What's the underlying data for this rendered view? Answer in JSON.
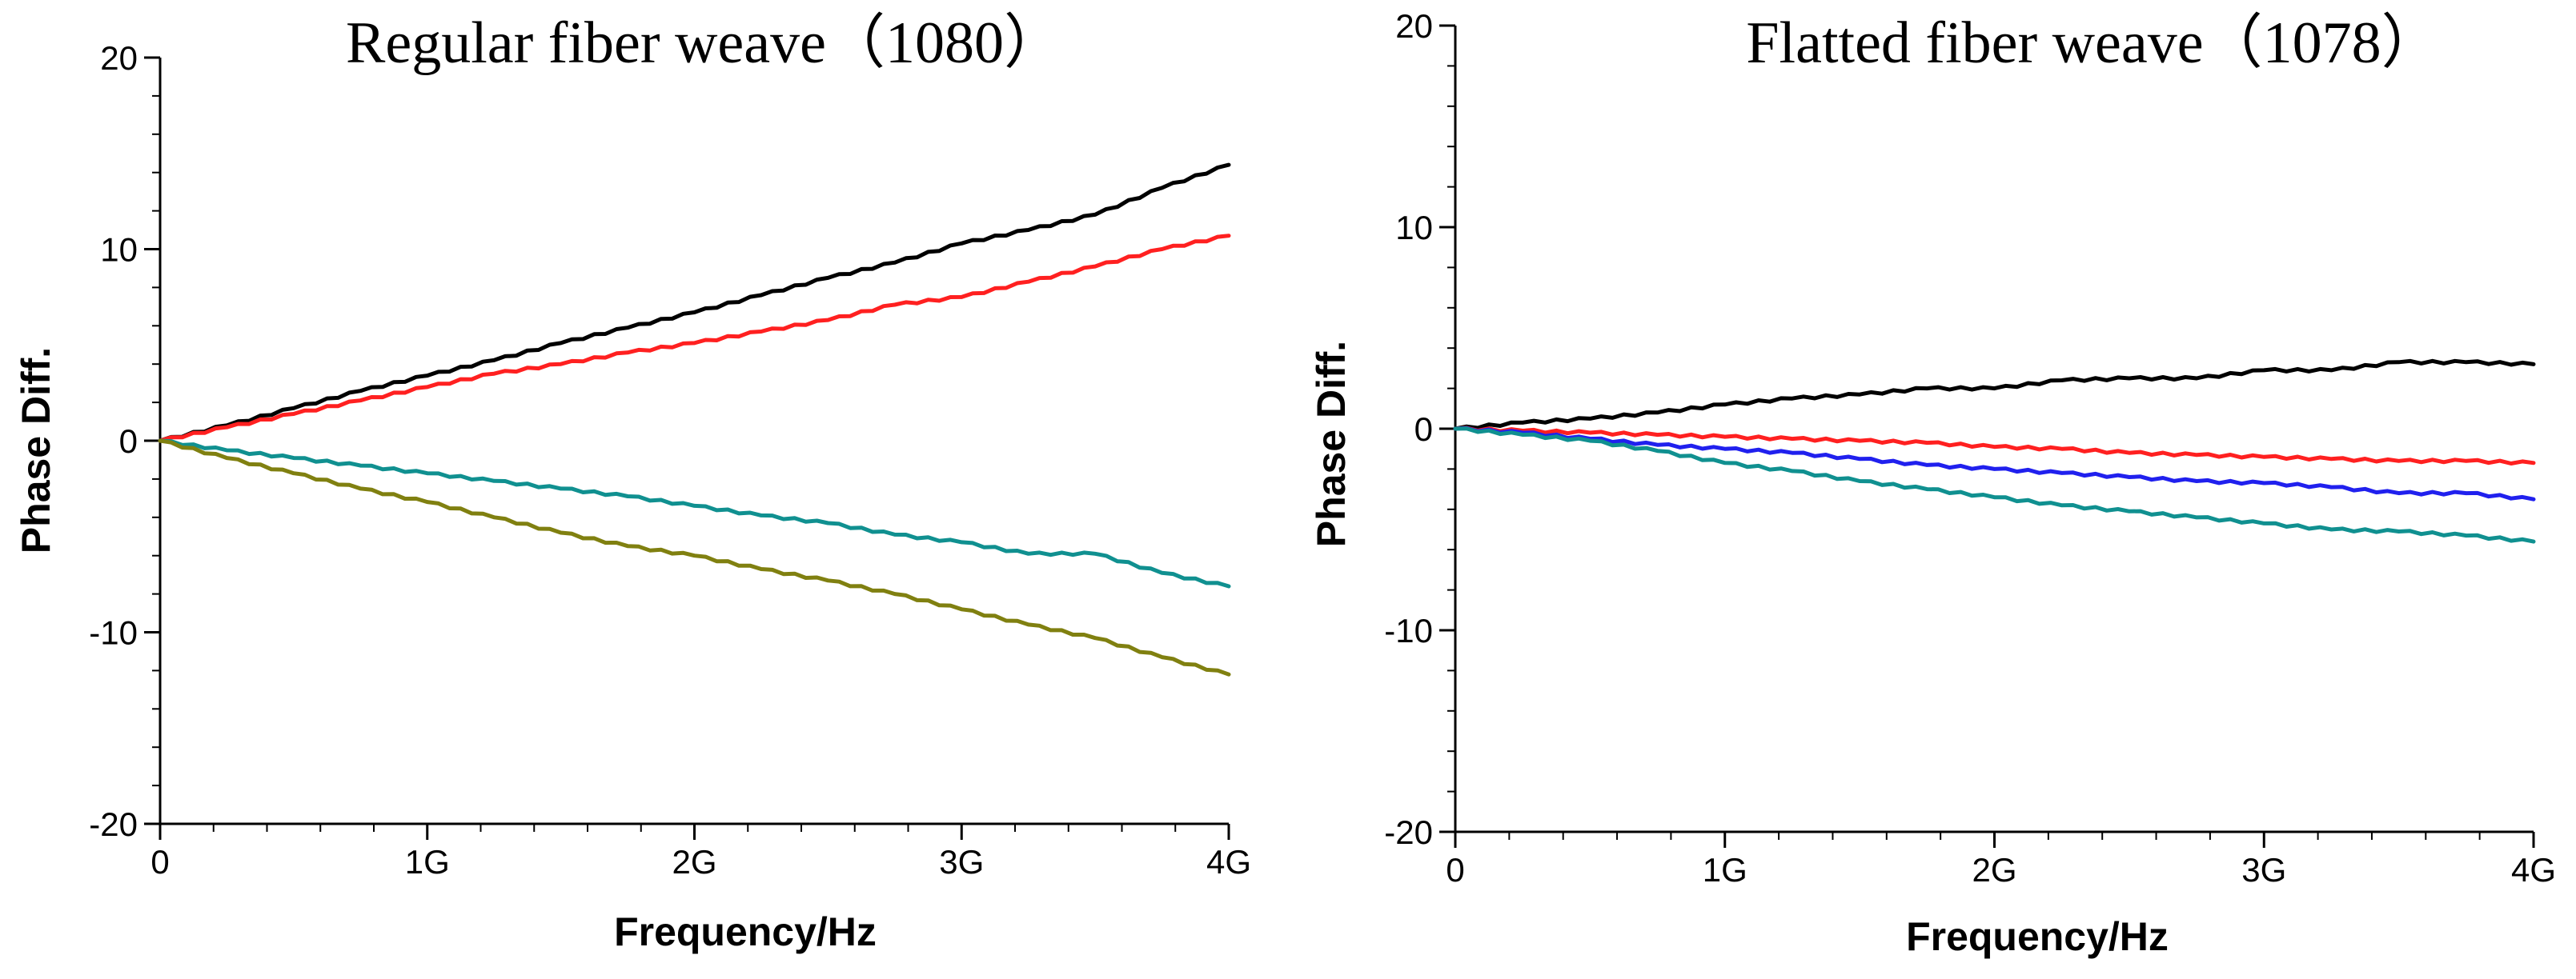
{
  "chart_data": [
    {
      "type": "line",
      "title": "Regular fiber weave（1080）",
      "xlabel": "Frequency/Hz",
      "ylabel": "Phase Diff.",
      "xlim": [
        0,
        4
      ],
      "ylim": [
        -20,
        20
      ],
      "x_ticks": [
        0,
        1,
        2,
        3,
        4
      ],
      "x_tick_labels": [
        "0",
        "1G",
        "2G",
        "3G",
        "4G"
      ],
      "y_ticks": [
        -20,
        -10,
        0,
        10,
        20
      ],
      "y_tick_labels": [
        "-20",
        "-10",
        "0",
        "10",
        "20"
      ],
      "grid": false,
      "x": [
        0,
        0.25,
        0.5,
        0.75,
        1.0,
        1.25,
        1.5,
        1.75,
        2.0,
        2.25,
        2.5,
        2.75,
        3.0,
        3.25,
        3.5,
        3.75,
        4.0
      ],
      "series": [
        {
          "name": "black",
          "color": "#000000",
          "values": [
            0,
            0.8,
            1.7,
            2.6,
            3.4,
            4.2,
            5.1,
            5.9,
            6.7,
            7.6,
            8.5,
            9.3,
            10.3,
            11.0,
            11.8,
            13.2,
            14.4
          ]
        },
        {
          "name": "red",
          "color": "#ff2020",
          "values": [
            0,
            0.7,
            1.4,
            2.1,
            2.8,
            3.5,
            4.0,
            4.6,
            5.1,
            5.7,
            6.3,
            7.1,
            7.5,
            8.3,
            9.1,
            10.0,
            10.7
          ]
        },
        {
          "name": "teal",
          "color": "#109090",
          "values": [
            0,
            -0.5,
            -0.9,
            -1.3,
            -1.7,
            -2.1,
            -2.5,
            -2.9,
            -3.4,
            -3.9,
            -4.3,
            -4.9,
            -5.3,
            -5.9,
            -5.9,
            -6.9,
            -7.6
          ]
        },
        {
          "name": "olive",
          "color": "#808010",
          "values": [
            0,
            -0.9,
            -1.7,
            -2.5,
            -3.2,
            -4.0,
            -4.8,
            -5.5,
            -6.0,
            -6.7,
            -7.3,
            -8.0,
            -8.8,
            -9.6,
            -10.3,
            -11.3,
            -12.2
          ]
        }
      ]
    },
    {
      "type": "line",
      "title": "Flatted fiber weave（1078）",
      "xlabel": "Frequency/Hz",
      "ylabel": "Phase Diff.",
      "xlim": [
        0,
        4
      ],
      "ylim": [
        -20,
        20
      ],
      "x_ticks": [
        0,
        1,
        2,
        3,
        4
      ],
      "x_tick_labels": [
        "0",
        "1G",
        "2G",
        "3G",
        "4G"
      ],
      "y_ticks": [
        -20,
        -10,
        0,
        10,
        20
      ],
      "y_tick_labels": [
        "-20",
        "-10",
        "0",
        "10",
        "20"
      ],
      "grid": false,
      "x": [
        0,
        0.25,
        0.5,
        0.75,
        1.0,
        1.25,
        1.5,
        1.75,
        2.0,
        2.25,
        2.5,
        2.75,
        3.0,
        3.25,
        3.5,
        3.75,
        4.0
      ],
      "series": [
        {
          "name": "black",
          "color": "#000000",
          "values": [
            0,
            0.3,
            0.5,
            0.8,
            1.2,
            1.5,
            1.7,
            2.0,
            2.0,
            2.4,
            2.5,
            2.5,
            2.9,
            2.9,
            3.3,
            3.3,
            3.2
          ]
        },
        {
          "name": "red",
          "color": "#ff2020",
          "values": [
            0,
            -0.1,
            -0.2,
            -0.3,
            -0.4,
            -0.5,
            -0.6,
            -0.7,
            -0.9,
            -1.0,
            -1.2,
            -1.3,
            -1.4,
            -1.5,
            -1.6,
            -1.6,
            -1.7
          ]
        },
        {
          "name": "blue",
          "color": "#2020ee",
          "values": [
            0,
            -0.2,
            -0.5,
            -0.8,
            -1.0,
            -1.2,
            -1.5,
            -1.8,
            -2.0,
            -2.2,
            -2.4,
            -2.6,
            -2.7,
            -2.9,
            -3.2,
            -3.2,
            -3.5
          ]
        },
        {
          "name": "teal",
          "color": "#109090",
          "values": [
            0,
            -0.3,
            -0.6,
            -1.1,
            -1.7,
            -2.1,
            -2.6,
            -3.0,
            -3.4,
            -3.8,
            -4.1,
            -4.4,
            -4.7,
            -5.0,
            -5.1,
            -5.3,
            -5.6
          ]
        }
      ]
    }
  ]
}
